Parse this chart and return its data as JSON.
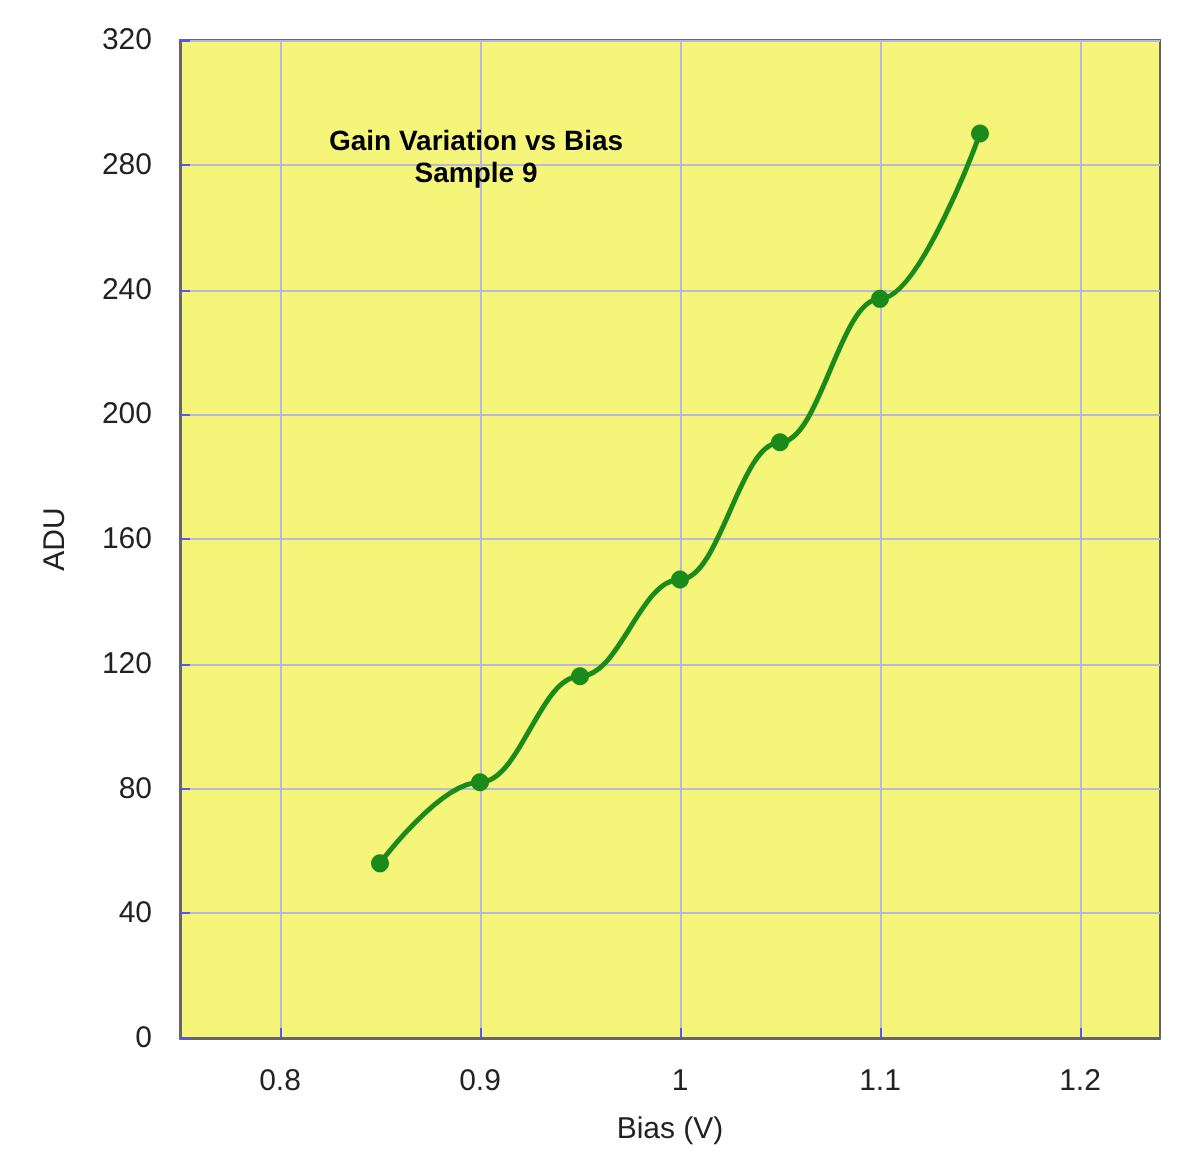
{
  "chart_data": {
    "type": "line",
    "title": "Gain Variation vs Bias",
    "subtitle": "Sample 9",
    "xlabel": "Bias (V)",
    "ylabel": "ADU",
    "x": [
      0.85,
      0.9,
      0.95,
      1.0,
      1.05,
      1.1,
      1.15
    ],
    "series": [
      {
        "color": "#1a8a1a",
        "values": [
          56,
          82,
          116,
          147,
          191,
          237,
          290
        ]
      }
    ],
    "xlim": [
      0.75,
      1.24
    ],
    "xticks": [
      0.8,
      0.9,
      1,
      1.1,
      1.2
    ],
    "ylim": [
      0,
      320
    ],
    "yticks": [
      0,
      40,
      80,
      120,
      160,
      200,
      240,
      280,
      320
    ],
    "grid": true,
    "marker": "circle",
    "line_style": "solid"
  }
}
